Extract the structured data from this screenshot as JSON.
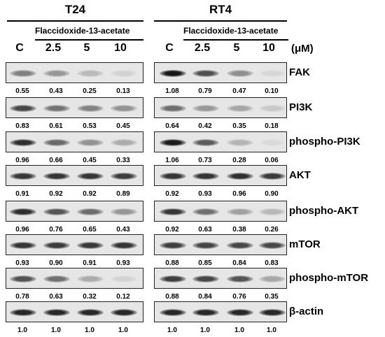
{
  "panels": [
    {
      "cell_line": "T24",
      "treatment": "Flaccidoxide-13-acetate",
      "lanes": [
        "C",
        "2.5",
        "5",
        "10"
      ]
    },
    {
      "cell_line": "RT4",
      "treatment": "Flaccidoxide-13-acetate",
      "lanes": [
        "C",
        "2.5",
        "5",
        "10"
      ]
    }
  ],
  "unit": "(μM)",
  "proteins": [
    {
      "name": "FAK",
      "t24": [
        "0.55",
        "0.43",
        "0.25",
        "0.13"
      ],
      "rt4": [
        "1.08",
        "0.79",
        "0.47",
        "0.10"
      ]
    },
    {
      "name": "PI3K",
      "t24": [
        "0.83",
        "0.61",
        "0.53",
        "0.45"
      ],
      "rt4": [
        "0.64",
        "0.42",
        "0.35",
        "0.18"
      ]
    },
    {
      "name": "phospho-PI3K",
      "t24": [
        "0.96",
        "0.66",
        "0.45",
        "0.33"
      ],
      "rt4": [
        "1.06",
        "0.73",
        "0.28",
        "0.06"
      ]
    },
    {
      "name": "AKT",
      "t24": [
        "0.91",
        "0.92",
        "0.92",
        "0.89"
      ],
      "rt4": [
        "0.92",
        "0.93",
        "0.96",
        "0.90"
      ]
    },
    {
      "name": "phospho-AKT",
      "t24": [
        "0.96",
        "0.76",
        "0.65",
        "0.43"
      ],
      "rt4": [
        "0.92",
        "0.63",
        "0.38",
        "0.26"
      ]
    },
    {
      "name": "mTOR",
      "t24": [
        "0.93",
        "0.90",
        "0.91",
        "0.93"
      ],
      "rt4": [
        "0.88",
        "0.85",
        "0.84",
        "0.83"
      ]
    },
    {
      "name": "phospho-mTOR",
      "t24": [
        "0.78",
        "0.63",
        "0.32",
        "0.12"
      ],
      "rt4": [
        "0.88",
        "0.84",
        "0.76",
        "0.35"
      ]
    },
    {
      "name": "β-actin",
      "t24": [
        "1.0",
        "1.0",
        "1.0",
        "1.0"
      ],
      "rt4": [
        "1.0",
        "1.0",
        "1.0",
        "1.0"
      ]
    }
  ]
}
